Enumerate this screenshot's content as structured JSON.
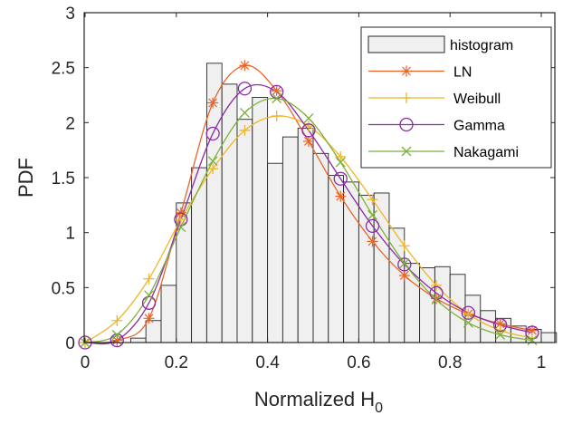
{
  "chart_data": {
    "type": "bar",
    "xlabel": "Normalized  H",
    "xlabel_subscript": "0",
    "ylabel": "PDF",
    "xlim": [
      0,
      1.02
    ],
    "ylim": [
      0,
      3
    ],
    "xticks": [
      "0",
      "0.2",
      "0.4",
      "0.6",
      "0.8",
      "1"
    ],
    "xtick_values": [
      0,
      0.2,
      0.4,
      0.6,
      0.8,
      1
    ],
    "yticks": [
      "0",
      "0.5",
      "1",
      "1.5",
      "2",
      "2.5",
      "3"
    ],
    "ytick_values": [
      0,
      0.5,
      1,
      1.5,
      2,
      2.5,
      3
    ],
    "legend_position": "top-right",
    "histogram": {
      "name": "histogram",
      "color": "#f0f0f0",
      "edge_color": "#262626",
      "bin_width": 0.0333,
      "bin_starts": [
        0.1,
        0.1333,
        0.1667,
        0.2,
        0.2333,
        0.2667,
        0.3,
        0.3333,
        0.3667,
        0.4,
        0.4333,
        0.4667,
        0.5,
        0.5333,
        0.5667,
        0.6,
        0.6333,
        0.6667,
        0.7,
        0.7333,
        0.7667,
        0.8,
        0.8333,
        0.8667,
        0.9,
        0.9333,
        0.9667,
        1.0
      ],
      "values": [
        0.04,
        0.2,
        0.52,
        1.27,
        1.59,
        2.54,
        2.35,
        2.03,
        2.23,
        1.63,
        1.87,
        1.95,
        1.72,
        1.52,
        1.46,
        1.34,
        1.36,
        1.04,
        0.72,
        0.68,
        0.69,
        0.62,
        0.43,
        0.29,
        0.22,
        0.15,
        0.12,
        0.09
      ]
    },
    "series": [
      {
        "name": "LN",
        "color": "#e8652a",
        "marker": "asterisk",
        "x": [
          0,
          0.07,
          0.14,
          0.21,
          0.28,
          0.35,
          0.42,
          0.49,
          0.56,
          0.63,
          0.7,
          0.77,
          0.84,
          0.91,
          0.98
        ],
        "y": [
          0,
          0.02,
          0.22,
          1.18,
          2.18,
          2.52,
          2.29,
          1.83,
          1.33,
          0.92,
          0.61,
          0.4,
          0.26,
          0.17,
          0.11
        ]
      },
      {
        "name": "Weibull",
        "color": "#efb627",
        "marker": "plus",
        "x": [
          0,
          0.07,
          0.14,
          0.21,
          0.28,
          0.35,
          0.42,
          0.49,
          0.56,
          0.63,
          0.7,
          0.77,
          0.84,
          0.91,
          0.98
        ],
        "y": [
          0,
          0.2,
          0.58,
          1.12,
          1.58,
          1.93,
          2.06,
          1.97,
          1.69,
          1.3,
          0.88,
          0.52,
          0.26,
          0.11,
          0.04
        ]
      },
      {
        "name": "Gamma",
        "color": "#8d2aa6",
        "marker": "circle",
        "x": [
          0,
          0.07,
          0.14,
          0.21,
          0.28,
          0.35,
          0.42,
          0.49,
          0.56,
          0.63,
          0.7,
          0.77,
          0.84,
          0.91,
          0.98
        ],
        "y": [
          0,
          0.02,
          0.36,
          1.12,
          1.9,
          2.31,
          2.28,
          1.93,
          1.49,
          1.06,
          0.71,
          0.45,
          0.27,
          0.16,
          0.09
        ]
      },
      {
        "name": "Nakagami",
        "color": "#7bb13b",
        "marker": "x",
        "x": [
          0,
          0.07,
          0.14,
          0.21,
          0.28,
          0.35,
          0.42,
          0.49,
          0.56,
          0.63,
          0.7,
          0.77,
          0.84,
          0.91,
          0.98
        ],
        "y": [
          0,
          0.07,
          0.43,
          1.05,
          1.65,
          2.09,
          2.22,
          2.04,
          1.64,
          1.16,
          0.72,
          0.39,
          0.18,
          0.07,
          0.02
        ]
      }
    ]
  }
}
